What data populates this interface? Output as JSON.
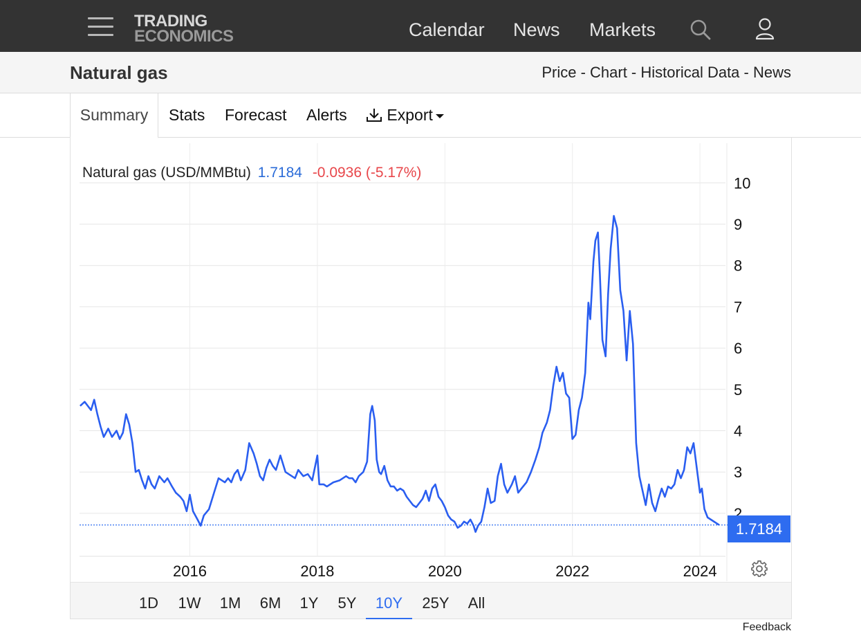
{
  "nav": {
    "logo_line1": "TRADING",
    "logo_line2": "ECONOMICS",
    "links": [
      "Calendar",
      "News",
      "Markets"
    ]
  },
  "title_bar": {
    "title": "Natural gas",
    "crumb": [
      "Price",
      "Chart",
      "Historical Data",
      "News"
    ]
  },
  "tabs": [
    "Summary",
    "Stats",
    "Forecast",
    "Alerts",
    "Export"
  ],
  "legend": {
    "name": "Natural gas (USD/MMBtu)",
    "value": "1.7184",
    "change": "-0.0936 (-5.17%)"
  },
  "last_value_label": "1.7184",
  "ranges": [
    "1D",
    "1W",
    "1M",
    "6M",
    "1Y",
    "5Y",
    "10Y",
    "25Y",
    "All"
  ],
  "active_range": "10Y",
  "feedback": "Feedback",
  "colors": {
    "line": "#2a5ef0",
    "accent": "#2e6cf0",
    "negative": "#e8464a",
    "navbar": "#333333"
  },
  "chart_data": {
    "type": "line",
    "title": "Natural gas (USD/MMBtu)",
    "xlabel": "",
    "ylabel": "",
    "x_ticks": [
      "2016",
      "2018",
      "2020",
      "2022",
      "2024"
    ],
    "y_ticks": [
      "2",
      "3",
      "4",
      "5",
      "6",
      "7",
      "8",
      "9",
      "10"
    ],
    "ylim": [
      0.96,
      10.96
    ],
    "xlim": [
      2014.27,
      2024.4
    ],
    "last_value": 1.7184,
    "grid": true,
    "series": [
      {
        "name": "Natural gas (USD/MMBtu)",
        "points": [
          [
            2014.28,
            4.6
          ],
          [
            2014.35,
            4.7
          ],
          [
            2014.45,
            4.5
          ],
          [
            2014.5,
            4.75
          ],
          [
            2014.55,
            4.4
          ],
          [
            2014.6,
            4.1
          ],
          [
            2014.65,
            3.85
          ],
          [
            2014.72,
            4.05
          ],
          [
            2014.78,
            3.85
          ],
          [
            2014.85,
            4.0
          ],
          [
            2014.9,
            3.8
          ],
          [
            2014.95,
            3.95
          ],
          [
            2015.0,
            4.4
          ],
          [
            2015.05,
            4.15
          ],
          [
            2015.1,
            3.7
          ],
          [
            2015.15,
            3.0
          ],
          [
            2015.2,
            3.05
          ],
          [
            2015.25,
            2.8
          ],
          [
            2015.3,
            2.6
          ],
          [
            2015.35,
            2.9
          ],
          [
            2015.4,
            2.7
          ],
          [
            2015.45,
            2.6
          ],
          [
            2015.52,
            2.9
          ],
          [
            2015.6,
            2.75
          ],
          [
            2015.65,
            2.85
          ],
          [
            2015.72,
            2.65
          ],
          [
            2015.78,
            2.5
          ],
          [
            2015.85,
            2.4
          ],
          [
            2015.9,
            2.3
          ],
          [
            2015.95,
            2.05
          ],
          [
            2016.0,
            2.45
          ],
          [
            2016.05,
            2.05
          ],
          [
            2016.12,
            1.85
          ],
          [
            2016.17,
            1.7
          ],
          [
            2016.22,
            1.95
          ],
          [
            2016.3,
            2.1
          ],
          [
            2016.38,
            2.5
          ],
          [
            2016.45,
            2.85
          ],
          [
            2016.5,
            2.8
          ],
          [
            2016.55,
            2.75
          ],
          [
            2016.6,
            2.85
          ],
          [
            2016.65,
            2.75
          ],
          [
            2016.7,
            2.95
          ],
          [
            2016.75,
            3.05
          ],
          [
            2016.8,
            2.8
          ],
          [
            2016.87,
            3.05
          ],
          [
            2016.93,
            3.7
          ],
          [
            2017.0,
            3.45
          ],
          [
            2017.05,
            3.2
          ],
          [
            2017.1,
            2.9
          ],
          [
            2017.15,
            2.8
          ],
          [
            2017.2,
            3.1
          ],
          [
            2017.25,
            3.3
          ],
          [
            2017.3,
            3.15
          ],
          [
            2017.35,
            3.05
          ],
          [
            2017.42,
            3.4
          ],
          [
            2017.5,
            3.0
          ],
          [
            2017.55,
            2.95
          ],
          [
            2017.6,
            2.9
          ],
          [
            2017.65,
            2.85
          ],
          [
            2017.7,
            3.05
          ],
          [
            2017.78,
            2.9
          ],
          [
            2017.85,
            2.95
          ],
          [
            2017.92,
            2.8
          ],
          [
            2018.0,
            3.4
          ],
          [
            2018.03,
            2.7
          ],
          [
            2018.1,
            2.7
          ],
          [
            2018.15,
            2.65
          ],
          [
            2018.25,
            2.75
          ],
          [
            2018.35,
            2.8
          ],
          [
            2018.45,
            2.9
          ],
          [
            2018.5,
            2.85
          ],
          [
            2018.55,
            2.85
          ],
          [
            2018.6,
            2.75
          ],
          [
            2018.65,
            2.9
          ],
          [
            2018.72,
            3.0
          ],
          [
            2018.78,
            3.25
          ],
          [
            2018.83,
            4.4
          ],
          [
            2018.86,
            4.6
          ],
          [
            2018.9,
            4.25
          ],
          [
            2018.93,
            3.3
          ],
          [
            2018.97,
            3.0
          ],
          [
            2019.0,
            2.95
          ],
          [
            2019.05,
            3.15
          ],
          [
            2019.1,
            2.8
          ],
          [
            2019.15,
            2.65
          ],
          [
            2019.2,
            2.65
          ],
          [
            2019.25,
            2.55
          ],
          [
            2019.3,
            2.6
          ],
          [
            2019.35,
            2.55
          ],
          [
            2019.4,
            2.4
          ],
          [
            2019.45,
            2.3
          ],
          [
            2019.5,
            2.2
          ],
          [
            2019.55,
            2.15
          ],
          [
            2019.6,
            2.25
          ],
          [
            2019.65,
            2.35
          ],
          [
            2019.7,
            2.55
          ],
          [
            2019.75,
            2.3
          ],
          [
            2019.8,
            2.6
          ],
          [
            2019.85,
            2.7
          ],
          [
            2019.9,
            2.4
          ],
          [
            2019.95,
            2.3
          ],
          [
            2020.0,
            2.15
          ],
          [
            2020.05,
            1.95
          ],
          [
            2020.1,
            1.85
          ],
          [
            2020.15,
            1.8
          ],
          [
            2020.2,
            1.65
          ],
          [
            2020.25,
            1.7
          ],
          [
            2020.3,
            1.8
          ],
          [
            2020.35,
            1.75
          ],
          [
            2020.4,
            1.85
          ],
          [
            2020.45,
            1.7
          ],
          [
            2020.48,
            1.55
          ],
          [
            2020.52,
            1.7
          ],
          [
            2020.57,
            1.8
          ],
          [
            2020.62,
            2.15
          ],
          [
            2020.67,
            2.6
          ],
          [
            2020.72,
            2.25
          ],
          [
            2020.78,
            2.3
          ],
          [
            2020.83,
            2.9
          ],
          [
            2020.88,
            3.2
          ],
          [
            2020.93,
            2.7
          ],
          [
            2020.98,
            2.5
          ],
          [
            2021.05,
            2.7
          ],
          [
            2021.1,
            2.9
          ],
          [
            2021.15,
            2.5
          ],
          [
            2021.2,
            2.6
          ],
          [
            2021.28,
            2.75
          ],
          [
            2021.35,
            3.0
          ],
          [
            2021.42,
            3.3
          ],
          [
            2021.48,
            3.6
          ],
          [
            2021.53,
            3.95
          ],
          [
            2021.6,
            4.2
          ],
          [
            2021.65,
            4.5
          ],
          [
            2021.7,
            5.1
          ],
          [
            2021.75,
            5.55
          ],
          [
            2021.8,
            5.2
          ],
          [
            2021.85,
            5.4
          ],
          [
            2021.9,
            4.9
          ],
          [
            2021.95,
            4.8
          ],
          [
            2022.0,
            3.8
          ],
          [
            2022.05,
            3.9
          ],
          [
            2022.1,
            4.5
          ],
          [
            2022.15,
            4.8
          ],
          [
            2022.2,
            5.4
          ],
          [
            2022.25,
            7.1
          ],
          [
            2022.28,
            6.7
          ],
          [
            2022.33,
            8.1
          ],
          [
            2022.36,
            8.6
          ],
          [
            2022.4,
            8.8
          ],
          [
            2022.43,
            7.8
          ],
          [
            2022.47,
            6.2
          ],
          [
            2022.52,
            5.8
          ],
          [
            2022.56,
            7.3
          ],
          [
            2022.6,
            8.4
          ],
          [
            2022.65,
            9.2
          ],
          [
            2022.7,
            8.9
          ],
          [
            2022.75,
            7.4
          ],
          [
            2022.8,
            6.9
          ],
          [
            2022.85,
            5.7
          ],
          [
            2022.9,
            6.9
          ],
          [
            2022.95,
            6.1
          ],
          [
            2023.0,
            3.7
          ],
          [
            2023.05,
            2.9
          ],
          [
            2023.1,
            2.55
          ],
          [
            2023.15,
            2.2
          ],
          [
            2023.2,
            2.7
          ],
          [
            2023.25,
            2.25
          ],
          [
            2023.3,
            2.05
          ],
          [
            2023.35,
            2.35
          ],
          [
            2023.4,
            2.6
          ],
          [
            2023.45,
            2.4
          ],
          [
            2023.5,
            2.65
          ],
          [
            2023.55,
            2.6
          ],
          [
            2023.6,
            2.7
          ],
          [
            2023.65,
            3.05
          ],
          [
            2023.7,
            2.85
          ],
          [
            2023.75,
            3.05
          ],
          [
            2023.8,
            3.6
          ],
          [
            2023.85,
            3.45
          ],
          [
            2023.9,
            3.7
          ],
          [
            2023.95,
            3.1
          ],
          [
            2024.0,
            2.5
          ],
          [
            2024.03,
            2.6
          ],
          [
            2024.07,
            2.1
          ],
          [
            2024.12,
            1.9
          ],
          [
            2024.17,
            1.85
          ],
          [
            2024.22,
            1.8
          ],
          [
            2024.3,
            1.7184
          ]
        ]
      }
    ]
  }
}
